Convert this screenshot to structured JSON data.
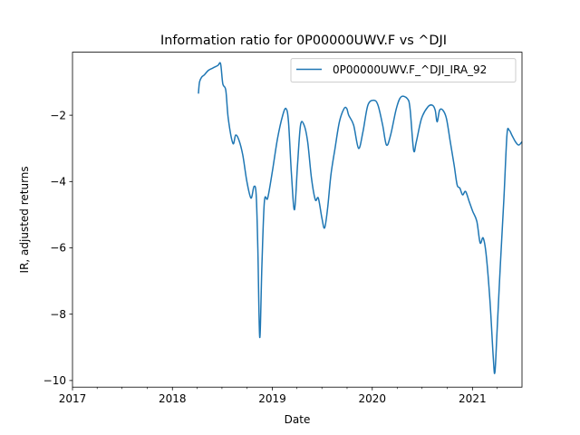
{
  "chart_data": {
    "type": "line",
    "title": "Information ratio for 0P00000UWV.F vs ^DJI",
    "xlabel": "Date",
    "ylabel": "IR, adjusted returns",
    "xlim": [
      "2017-01-01",
      "2021-07-01"
    ],
    "ylim": [
      -10.2,
      -0.1
    ],
    "x_ticks": [
      {
        "date": "2017-01-01",
        "label": "2017"
      },
      {
        "date": "2018-01-01",
        "label": "2018"
      },
      {
        "date": "2019-01-01",
        "label": "2019"
      },
      {
        "date": "2020-01-01",
        "label": "2020"
      },
      {
        "date": "2021-01-01",
        "label": "2021"
      }
    ],
    "minor_x_ticks": [
      "2017-04-01",
      "2017-07-01",
      "2017-10-01",
      "2018-04-01",
      "2018-07-01",
      "2018-10-01",
      "2019-04-01",
      "2019-07-01",
      "2019-10-01",
      "2020-04-01",
      "2020-07-01",
      "2020-10-01",
      "2021-04-01"
    ],
    "y_ticks": [
      {
        "value": -2,
        "label": "−2"
      },
      {
        "value": -4,
        "label": "−4"
      },
      {
        "value": -6,
        "label": "−6"
      },
      {
        "value": -8,
        "label": "−8"
      },
      {
        "value": -10,
        "label": "−10"
      }
    ],
    "grid": false,
    "legend_position": "top-right",
    "series": [
      {
        "name": "0P00000UWV.F_^DJI_IRA_92",
        "color": "#1f77b4",
        "points": [
          [
            "2018-04-06",
            -1.35
          ],
          [
            "2018-04-10",
            -1.0
          ],
          [
            "2018-04-18",
            -0.85
          ],
          [
            "2018-04-28",
            -0.78
          ],
          [
            "2018-05-12",
            -0.65
          ],
          [
            "2018-05-28",
            -0.58
          ],
          [
            "2018-06-16",
            -0.5
          ],
          [
            "2018-06-26",
            -0.45
          ],
          [
            "2018-07-04",
            -1.05
          ],
          [
            "2018-07-15",
            -1.25
          ],
          [
            "2018-07-24",
            -2.1
          ],
          [
            "2018-08-10",
            -2.85
          ],
          [
            "2018-08-20",
            -2.6
          ],
          [
            "2018-09-01",
            -2.75
          ],
          [
            "2018-09-15",
            -3.2
          ],
          [
            "2018-09-30",
            -4.0
          ],
          [
            "2018-10-15",
            -4.5
          ],
          [
            "2018-10-26",
            -4.15
          ],
          [
            "2018-11-03",
            -4.4
          ],
          [
            "2018-11-09",
            -6.0
          ],
          [
            "2018-11-16",
            -8.7
          ],
          [
            "2018-11-24",
            -6.5
          ],
          [
            "2018-12-03",
            -4.6
          ],
          [
            "2018-12-15",
            -4.5
          ],
          [
            "2019-01-01",
            -3.7
          ],
          [
            "2019-01-20",
            -2.7
          ],
          [
            "2019-02-08",
            -2.0
          ],
          [
            "2019-02-20",
            -1.8
          ],
          [
            "2019-03-01",
            -2.2
          ],
          [
            "2019-03-12",
            -3.8
          ],
          [
            "2019-03-23",
            -4.85
          ],
          [
            "2019-04-03",
            -3.5
          ],
          [
            "2019-04-14",
            -2.3
          ],
          [
            "2019-04-27",
            -2.3
          ],
          [
            "2019-05-10",
            -2.8
          ],
          [
            "2019-05-24",
            -3.9
          ],
          [
            "2019-06-07",
            -4.55
          ],
          [
            "2019-06-18",
            -4.5
          ],
          [
            "2019-07-01",
            -5.1
          ],
          [
            "2019-07-11",
            -5.4
          ],
          [
            "2019-07-22",
            -4.8
          ],
          [
            "2019-08-03",
            -3.8
          ],
          [
            "2019-08-18",
            -3.0
          ],
          [
            "2019-09-03",
            -2.2
          ],
          [
            "2019-09-20",
            -1.8
          ],
          [
            "2019-09-30",
            -1.8
          ],
          [
            "2019-10-07",
            -2.0
          ],
          [
            "2019-10-25",
            -2.3
          ],
          [
            "2019-11-12",
            -3.0
          ],
          [
            "2019-11-28",
            -2.5
          ],
          [
            "2019-12-16",
            -1.7
          ],
          [
            "2020-01-07",
            -1.55
          ],
          [
            "2020-01-22",
            -1.7
          ],
          [
            "2020-02-08",
            -2.3
          ],
          [
            "2020-02-22",
            -2.9
          ],
          [
            "2020-03-08",
            -2.6
          ],
          [
            "2020-03-29",
            -1.8
          ],
          [
            "2020-04-15",
            -1.45
          ],
          [
            "2020-05-08",
            -1.5
          ],
          [
            "2020-05-18",
            -1.8
          ],
          [
            "2020-05-31",
            -3.05
          ],
          [
            "2020-06-10",
            -2.8
          ],
          [
            "2020-06-29",
            -2.1
          ],
          [
            "2020-07-22",
            -1.75
          ],
          [
            "2020-08-08",
            -1.7
          ],
          [
            "2020-08-18",
            -1.85
          ],
          [
            "2020-08-25",
            -2.2
          ],
          [
            "2020-09-03",
            -1.85
          ],
          [
            "2020-09-15",
            -1.85
          ],
          [
            "2020-09-28",
            -2.1
          ],
          [
            "2020-10-12",
            -2.8
          ],
          [
            "2020-10-26",
            -3.5
          ],
          [
            "2020-11-06",
            -4.1
          ],
          [
            "2020-11-16",
            -4.2
          ],
          [
            "2020-11-26",
            -4.4
          ],
          [
            "2020-12-07",
            -4.3
          ],
          [
            "2020-12-20",
            -4.6
          ],
          [
            "2021-01-02",
            -4.9
          ],
          [
            "2021-01-17",
            -5.2
          ],
          [
            "2021-01-29",
            -5.85
          ],
          [
            "2021-02-09",
            -5.7
          ],
          [
            "2021-02-20",
            -6.2
          ],
          [
            "2021-03-06",
            -7.6
          ],
          [
            "2021-03-18",
            -9.3
          ],
          [
            "2021-03-24",
            -9.75
          ],
          [
            "2021-04-01",
            -8.5
          ],
          [
            "2021-04-13",
            -6.5
          ],
          [
            "2021-04-26",
            -4.5
          ],
          [
            "2021-05-07",
            -2.6
          ],
          [
            "2021-05-15",
            -2.45
          ],
          [
            "2021-05-25",
            -2.6
          ],
          [
            "2021-06-07",
            -2.8
          ],
          [
            "2021-06-19",
            -2.9
          ],
          [
            "2021-07-01",
            -2.8
          ]
        ]
      }
    ]
  }
}
